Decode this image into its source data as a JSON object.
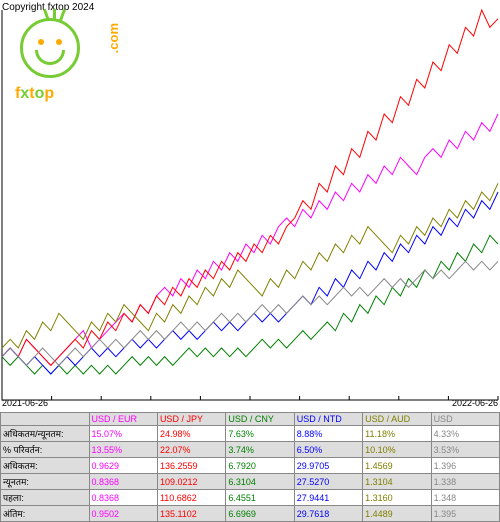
{
  "copyright": "Copyright fxtop 2024",
  "logo": {
    "brand": "fxtop",
    "suffix": ".com"
  },
  "chart": {
    "type": "line",
    "xlim": [
      "2021-06-26",
      "2022-06-26"
    ],
    "ylim": [
      95,
      140
    ],
    "background": "#ffffff",
    "axis_color": "#000000",
    "line_width": 1,
    "series": [
      {
        "name": "USD/EUR",
        "color": "#ff00ff",
        "points": [
          100,
          101,
          100,
          102,
          101,
          100,
          99,
          100,
          101,
          102,
          103,
          101,
          102,
          103,
          104,
          105,
          104,
          106,
          105,
          107,
          108,
          107,
          109,
          108,
          110,
          109,
          111,
          110,
          112,
          111,
          113,
          112,
          114,
          113,
          115,
          116,
          115,
          117,
          116,
          118,
          117,
          119,
          118,
          120,
          119,
          121,
          120,
          122,
          121,
          123,
          122,
          121,
          123,
          124,
          123,
          125,
          124,
          126,
          125,
          127,
          126,
          128
        ]
      },
      {
        "name": "USD/JPY",
        "color": "#ff0000",
        "points": [
          100,
          101,
          100,
          102,
          101,
          100,
          99,
          100,
          101,
          102,
          101,
          103,
          102,
          104,
          103,
          105,
          104,
          106,
          105,
          107,
          106,
          108,
          107,
          109,
          108,
          110,
          109,
          111,
          110,
          112,
          111,
          113,
          112,
          114,
          113,
          115,
          116,
          118,
          117,
          120,
          119,
          122,
          121,
          124,
          123,
          126,
          125,
          128,
          127,
          130,
          129,
          132,
          131,
          134,
          133,
          136,
          135,
          138,
          137,
          140,
          138,
          139
        ]
      },
      {
        "name": "USD/CNY",
        "color": "#008000",
        "points": [
          100,
          99,
          100,
          99,
          98,
          99,
          98,
          99,
          98,
          99,
          98,
          99,
          98,
          99,
          98,
          99,
          100,
          99,
          100,
          99,
          100,
          99,
          100,
          101,
          100,
          101,
          100,
          101,
          100,
          101,
          100,
          101,
          102,
          101,
          102,
          101,
          102,
          103,
          102,
          103,
          104,
          103,
          105,
          104,
          106,
          105,
          107,
          106,
          108,
          107,
          109,
          108,
          110,
          109,
          111,
          110,
          112,
          111,
          113,
          112,
          114,
          113
        ]
      },
      {
        "name": "USD/NTD",
        "color": "#0000ff",
        "points": [
          100,
          101,
          100,
          99,
          100,
          99,
          98,
          99,
          100,
          99,
          100,
          101,
          100,
          101,
          100,
          101,
          102,
          101,
          102,
          101,
          102,
          103,
          102,
          103,
          102,
          103,
          104,
          103,
          104,
          103,
          104,
          105,
          104,
          105,
          104,
          105,
          106,
          107,
          106,
          108,
          107,
          109,
          108,
          110,
          109,
          111,
          110,
          112,
          111,
          113,
          112,
          114,
          113,
          115,
          114,
          116,
          115,
          117,
          116,
          118,
          117,
          119
        ]
      },
      {
        "name": "USD/AUD",
        "color": "#808000",
        "points": [
          101,
          102,
          101,
          103,
          102,
          104,
          103,
          105,
          104,
          103,
          102,
          104,
          103,
          105,
          104,
          106,
          105,
          104,
          103,
          105,
          104,
          106,
          105,
          107,
          106,
          108,
          107,
          109,
          108,
          110,
          109,
          108,
          107,
          109,
          108,
          110,
          109,
          111,
          110,
          112,
          111,
          113,
          112,
          114,
          113,
          115,
          114,
          113,
          112,
          114,
          113,
          115,
          114,
          116,
          115,
          117,
          116,
          118,
          117,
          119,
          118,
          120
        ]
      },
      {
        "name": "USD/?",
        "color": "#888888",
        "points": [
          100,
          101,
          100,
          99,
          100,
          101,
          100,
          99,
          100,
          101,
          100,
          101,
          102,
          101,
          102,
          101,
          102,
          103,
          102,
          103,
          102,
          103,
          104,
          103,
          104,
          103,
          104,
          105,
          104,
          105,
          104,
          105,
          106,
          105,
          106,
          105,
          106,
          107,
          106,
          107,
          106,
          107,
          108,
          107,
          108,
          107,
          108,
          109,
          108,
          109,
          108,
          109,
          110,
          109,
          110,
          109,
          110,
          111,
          110,
          111,
          110,
          111
        ]
      }
    ]
  },
  "xaxis": {
    "start": "2021-06-26",
    "end": "2022-06-26"
  },
  "table": {
    "headers": [
      "",
      "USD / EUR",
      "USD / JPY",
      "USD / CNY",
      "USD / NTD",
      "USD / AUD",
      "USD"
    ],
    "header_colors": [
      "#000",
      "#ff00ff",
      "#ff0000",
      "#008000",
      "#0000ff",
      "#808000",
      "#888888"
    ],
    "rows": [
      {
        "label": "अधिकतम/न्यूनतम:",
        "values": [
          "15.07%",
          "24.98%",
          "7.63%",
          "8.88%",
          "11.18%",
          "4.33%"
        ]
      },
      {
        "label": "% परिवर्तन:",
        "values": [
          "13.55%",
          "22.07%",
          "3.74%",
          "6.50%",
          "10.10%",
          "3.53%"
        ],
        "bg": "#ddd"
      },
      {
        "label": "अधिकतम:",
        "values": [
          "0.9629",
          "136.2559",
          "6.7920",
          "29.9705",
          "1.4569",
          "1.396"
        ]
      },
      {
        "label": "न्यूनतम:",
        "values": [
          "0.8368",
          "109.0212",
          "6.3104",
          "27.5270",
          "1.3104",
          "1.338"
        ],
        "bg": "#ddd"
      },
      {
        "label": "पहला:",
        "values": [
          "0.8368",
          "110.6862",
          "6.4551",
          "27.9441",
          "1.3160",
          "1.348"
        ]
      },
      {
        "label": "अंतिम:",
        "values": [
          "0.9502",
          "135.1102",
          "6.6969",
          "29.7618",
          "1.4489",
          "1.395"
        ],
        "bg": "#ddd"
      }
    ]
  }
}
